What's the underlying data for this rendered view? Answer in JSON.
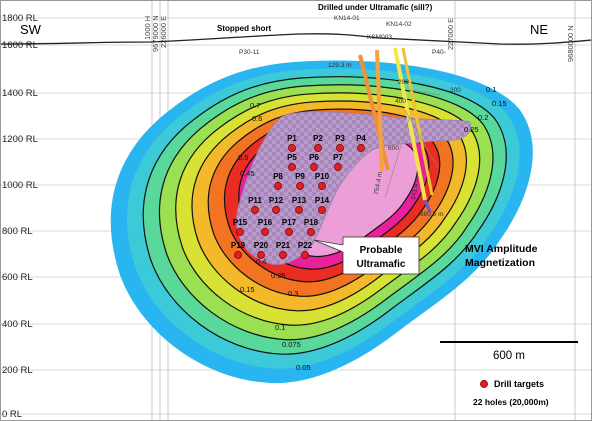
{
  "directions": {
    "west": "SW",
    "east": "NE"
  },
  "topography": {
    "label": "Stopped short"
  },
  "annotation_top": "Drilled under Ultramafic (sill?)",
  "rl_labels": [
    "1800 RL",
    "1600 RL",
    "1400 RL",
    "1200 RL",
    "1000 RL",
    "800 RL",
    "600 RL",
    "400 RL",
    "200 RL",
    "0 RL"
  ],
  "grid_labels": {
    "h1000": "1000 H",
    "n9679": "9679000 N",
    "e226": "226000 E",
    "e227": "227000 E",
    "n9680": "9680000 N"
  },
  "drill_holes": {
    "p30": "P30-11",
    "p40": "P40-",
    "kn1401": "KN14-01",
    "kn1402": "KN14-02",
    "ksm003": "KSM003",
    "depth1": "129.3 m",
    "depth2": "754.4 m",
    "depth3": "841.4 m",
    "depth4": "880.5 m",
    "d600": "600",
    "d400": "400",
    "d200": "200",
    "d200b": "200"
  },
  "contours": {
    "colors": [
      "#29b6f0",
      "#3ccad8",
      "#58d89a",
      "#9ae052",
      "#d8e235",
      "#f3b92a",
      "#f27322",
      "#eb2c22",
      "#e8209a",
      "#ec9fd6"
    ],
    "labels": [
      "0.15",
      "0.1",
      "0.075",
      "0.05",
      "0.3",
      "0.35",
      "0.4",
      "0.45",
      "0.5",
      "0.6",
      "0.7",
      "0.25",
      "0.2",
      "0.15",
      "0.1"
    ]
  },
  "targets": {
    "color": "#e02020",
    "labels": [
      "P1",
      "P2",
      "P3",
      "P4",
      "P5",
      "P6",
      "P7",
      "P8",
      "P9",
      "P10",
      "P11",
      "P12",
      "P13",
      "P14",
      "P15",
      "P16",
      "P17",
      "P18",
      "P19",
      "P20",
      "P21",
      "P22"
    ]
  },
  "callout": {
    "line1": "Probable",
    "line2": "Ultramafic"
  },
  "mvi": {
    "line1": "MVI Amplitude",
    "line2": "Magnetization"
  },
  "scale_bar": {
    "label": "600 m"
  },
  "legend": {
    "label": "Drill targets",
    "sublabel": "22 holes (20,000m)"
  }
}
